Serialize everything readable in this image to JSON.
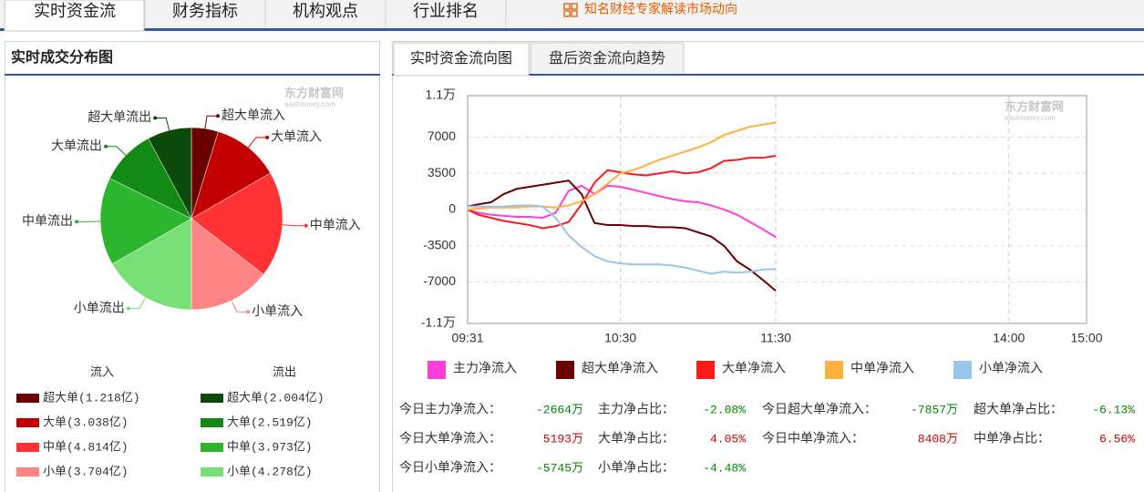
{
  "tabs": [
    "实时资金流",
    "财务指标",
    "机构观点",
    "行业排名"
  ],
  "link": "知名财经专家解读市场动向",
  "right_tabs": [
    "实时资金流向图",
    "盘后资金流向趋势"
  ],
  "watermark": [
    "东方财富网",
    "eastmoney.com"
  ],
  "chart_data": [
    {
      "type": "pie",
      "title": "实时成交分布图",
      "categories": [
        "超大单流入",
        "大单流入",
        "中单流入",
        "小单流入",
        "小单流出",
        "中单流出",
        "大单流出",
        "超大单流出"
      ],
      "values": [
        1.218,
        3.038,
        4.814,
        3.704,
        4.278,
        3.973,
        2.519,
        2.004
      ],
      "value_labels": [
        "超大单(1.218亿)",
        "大单(3.038亿)",
        "中单(4.814亿)",
        "小单(3.704亿)",
        "小单(4.278亿)",
        "中单(3.973亿)",
        "大单(2.519亿)",
        "超大单(2.004亿)"
      ],
      "colors": [
        "#6b0000",
        "#c20000",
        "#ff3333",
        "#ff8585",
        "#77e077",
        "#2db52d",
        "#138a13",
        "#0b4a0b"
      ],
      "legend_headers": [
        "流入",
        "流出"
      ]
    },
    {
      "type": "line",
      "x": [
        1,
        5,
        10,
        15,
        20,
        25,
        30,
        35,
        40,
        45,
        50,
        55,
        60,
        65,
        70,
        75,
        80,
        85,
        90,
        95,
        100,
        105,
        110,
        115,
        120
      ],
      "xlim": [
        1,
        240
      ],
      "xticks": [
        {
          "value": 1,
          "label": "09:31"
        },
        {
          "value": 60,
          "label": "10:30"
        },
        {
          "value": 120,
          "label": "11:30"
        },
        {
          "value": 210,
          "label": "14:00"
        },
        {
          "value": 240,
          "label": "15:00"
        }
      ],
      "ylim": [
        -11000,
        11000
      ],
      "yticks": [
        {
          "value": 11000,
          "label": "1.1万"
        },
        7000,
        3500,
        0,
        -3500,
        -7000,
        {
          "value": -11000,
          "label": "-1.1万"
        }
      ],
      "grid": true,
      "series": [
        {
          "name": "主力净流入",
          "color": "#ff3fd9",
          "values": [
            0,
            -300,
            -500,
            -600,
            -700,
            -700,
            -800,
            -300,
            1800,
            2300,
            1500,
            2300,
            2200,
            1900,
            1600,
            1300,
            1000,
            800,
            700,
            400,
            0,
            -500,
            -1200,
            -1900,
            -2664
          ]
        },
        {
          "name": "超大单净流入",
          "color": "#6b0000",
          "values": [
            300,
            500,
            700,
            1500,
            2000,
            2200,
            2400,
            2600,
            2800,
            1500,
            -1300,
            -1500,
            -1500,
            -1600,
            -1600,
            -1700,
            -1700,
            -1800,
            -2200,
            -2600,
            -3500,
            -5000,
            -5800,
            -6800,
            -7857
          ]
        },
        {
          "name": "大单净流入",
          "color": "#ff1a1a",
          "values": [
            0,
            -500,
            -800,
            -1100,
            -1300,
            -1500,
            -1800,
            -1600,
            -1200,
            500,
            2600,
            3800,
            3600,
            3400,
            3300,
            3500,
            3700,
            3500,
            3600,
            4000,
            4700,
            4800,
            5000,
            5000,
            5193
          ]
        },
        {
          "name": "中单净流入",
          "color": "#ffb23f",
          "values": [
            0,
            100,
            200,
            200,
            200,
            300,
            300,
            200,
            400,
            800,
            1500,
            2500,
            3500,
            3800,
            4300,
            4800,
            5200,
            5600,
            6000,
            6500,
            7200,
            7600,
            8000,
            8200,
            8408
          ]
        },
        {
          "name": "小单净流入",
          "color": "#99c5ea",
          "values": [
            300,
            300,
            300,
            300,
            400,
            400,
            300,
            -800,
            -2500,
            -3600,
            -4500,
            -5000,
            -5200,
            -5300,
            -5300,
            -5300,
            -5400,
            -5600,
            -5900,
            -6200,
            -6000,
            -6100,
            -6000,
            -5800,
            -5745
          ]
        }
      ]
    }
  ],
  "stats": [
    [
      {
        "label": "今日主力净流入：",
        "value": "-2664万"
      },
      {
        "label": "主力净占比：",
        "value": "-2.08%"
      },
      {
        "label": "今日超大单净流入：",
        "value": "-7857万"
      },
      {
        "label": "超大单净占比：",
        "value": "-6.13%"
      }
    ],
    [
      {
        "label": "今日大单净流入：",
        "value": "5193万"
      },
      {
        "label": "大单净占比：",
        "value": "4.05%"
      },
      {
        "label": "今日中单净流入：",
        "value": "8408万"
      },
      {
        "label": "中单净占比：",
        "value": "6.56%"
      }
    ],
    [
      {
        "label": "今日小单净流入：",
        "value": "-5745万"
      },
      {
        "label": "小单净占比：",
        "value": "-4.48%"
      }
    ]
  ]
}
